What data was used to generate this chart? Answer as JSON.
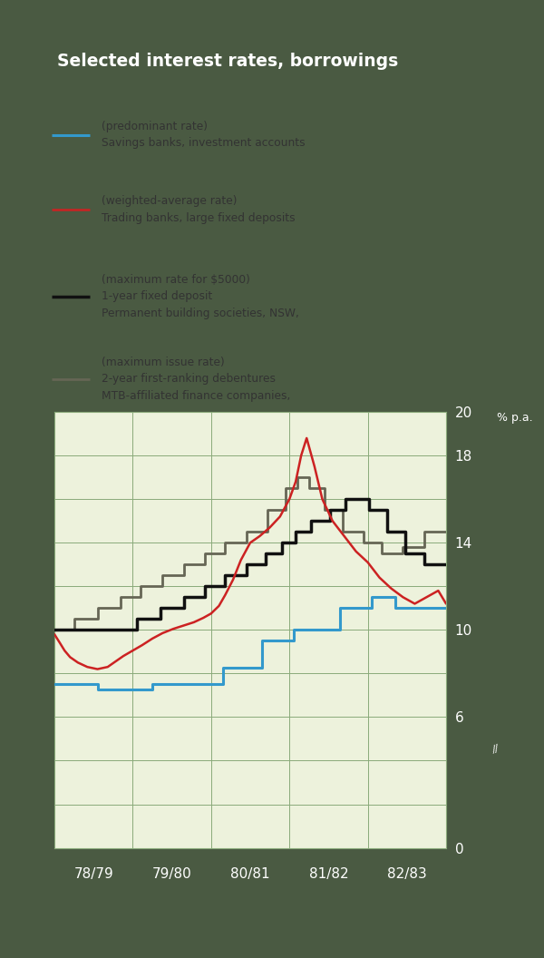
{
  "title": "Selected interest rates, borrowings",
  "background_outer": "#4a5a42",
  "background_inner": "#edf2dc",
  "title_color": "#ffffff",
  "tick_color": "#ffffff",
  "grid_color": "#8aaa7a",
  "legend_text_color": "#333333",
  "ylabel_text": "% p.a.",
  "ylim": [
    0,
    20
  ],
  "xtick_labels": [
    "78/79",
    "79/80",
    "80/81",
    "81/82",
    "82/83"
  ],
  "ytick_shown": [
    0,
    6,
    10,
    14,
    18,
    20
  ],
  "legend_entries": [
    {
      "label1": "Savings banks, investment accounts",
      "label2": "(predominant rate)",
      "label3": "",
      "color": "#3399cc",
      "lw": 2.2
    },
    {
      "label1": "Trading banks, large fixed deposits",
      "label2": "(weighted-average rate)",
      "label3": "",
      "color": "#cc2222",
      "lw": 1.8
    },
    {
      "label1": "Permanent building societies, NSW,",
      "label2": "1-year fixed deposit",
      "label3": "(maximum rate for $5000)",
      "color": "#111111",
      "lw": 2.5
    },
    {
      "label1": "MTB-affiliated finance companies,",
      "label2": "2-year first-ranking debentures",
      "label3": "(maximum issue rate)",
      "color": "#666655",
      "lw": 2.0
    }
  ],
  "savings_banks_x": [
    0.0,
    0.55,
    0.55,
    1.25,
    1.25,
    2.15,
    2.15,
    2.65,
    2.65,
    3.05,
    3.05,
    3.65,
    3.65,
    4.05,
    4.05,
    4.35,
    4.35,
    5.0
  ],
  "savings_banks_y": [
    7.5,
    7.5,
    7.25,
    7.25,
    7.5,
    7.5,
    8.25,
    8.25,
    9.5,
    9.5,
    10.0,
    10.0,
    11.0,
    11.0,
    11.5,
    11.5,
    11.0,
    11.0
  ],
  "trading_banks_x": [
    0.0,
    0.07,
    0.13,
    0.2,
    0.3,
    0.42,
    0.55,
    0.68,
    0.78,
    0.88,
    1.0,
    1.12,
    1.25,
    1.38,
    1.52,
    1.65,
    1.78,
    1.9,
    2.0,
    2.1,
    2.18,
    2.28,
    2.38,
    2.5,
    2.62,
    2.75,
    2.88,
    3.0,
    3.08,
    3.15,
    3.22,
    3.32,
    3.42,
    3.55,
    3.7,
    3.85,
    4.0,
    4.15,
    4.3,
    4.45,
    4.6,
    4.75,
    4.9,
    5.0
  ],
  "trading_banks_y": [
    9.8,
    9.4,
    9.05,
    8.75,
    8.5,
    8.3,
    8.2,
    8.3,
    8.55,
    8.8,
    9.05,
    9.3,
    9.6,
    9.85,
    10.05,
    10.2,
    10.35,
    10.55,
    10.75,
    11.1,
    11.6,
    12.3,
    13.2,
    14.0,
    14.3,
    14.7,
    15.2,
    16.0,
    16.8,
    18.0,
    18.8,
    17.5,
    16.0,
    15.0,
    14.3,
    13.6,
    13.1,
    12.4,
    11.9,
    11.5,
    11.2,
    11.5,
    11.8,
    11.2
  ],
  "building_societies_x": [
    0.0,
    1.05,
    1.05,
    1.35,
    1.35,
    1.65,
    1.65,
    1.92,
    1.92,
    2.18,
    2.18,
    2.45,
    2.45,
    2.7,
    2.7,
    2.9,
    2.9,
    3.08,
    3.08,
    3.28,
    3.28,
    3.52,
    3.52,
    3.72,
    3.72,
    4.02,
    4.02,
    4.25,
    4.25,
    4.48,
    4.48,
    4.72,
    4.72,
    5.0
  ],
  "building_societies_y": [
    10.0,
    10.0,
    10.5,
    10.5,
    11.0,
    11.0,
    11.5,
    11.5,
    12.0,
    12.0,
    12.5,
    12.5,
    13.0,
    13.0,
    13.5,
    13.5,
    14.0,
    14.0,
    14.5,
    14.5,
    15.0,
    15.0,
    15.5,
    15.5,
    16.0,
    16.0,
    15.5,
    15.5,
    14.5,
    14.5,
    13.5,
    13.5,
    13.0,
    13.0
  ],
  "finance_cos_x": [
    0.0,
    0.25,
    0.25,
    0.55,
    0.55,
    0.85,
    0.85,
    1.1,
    1.1,
    1.38,
    1.38,
    1.65,
    1.65,
    1.92,
    1.92,
    2.18,
    2.18,
    2.45,
    2.45,
    2.72,
    2.72,
    2.95,
    2.95,
    3.1,
    3.1,
    3.25,
    3.25,
    3.45,
    3.45,
    3.68,
    3.68,
    3.95,
    3.95,
    4.18,
    4.18,
    4.45,
    4.45,
    4.72,
    4.72,
    5.0
  ],
  "finance_cos_y": [
    10.0,
    10.0,
    10.5,
    10.5,
    11.0,
    11.0,
    11.5,
    11.5,
    12.0,
    12.0,
    12.5,
    12.5,
    13.0,
    13.0,
    13.5,
    13.5,
    14.0,
    14.0,
    14.5,
    14.5,
    15.5,
    15.5,
    16.5,
    16.5,
    17.0,
    17.0,
    16.5,
    16.5,
    15.5,
    15.5,
    14.5,
    14.5,
    14.0,
    14.0,
    13.5,
    13.5,
    13.8,
    13.8,
    14.5,
    14.5
  ]
}
